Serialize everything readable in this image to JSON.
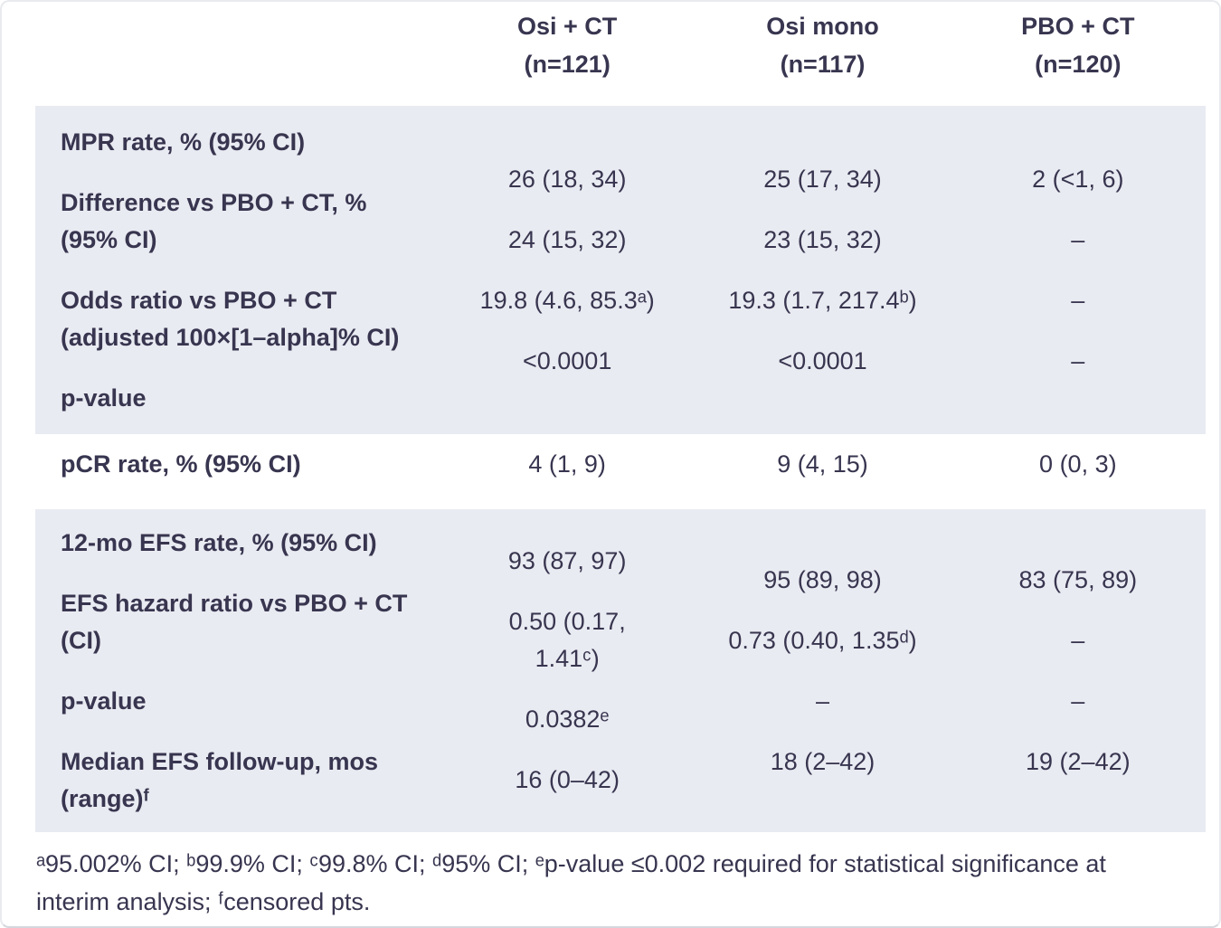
{
  "header": {
    "columns": [
      {
        "treatment": "Osi + CT",
        "n": "(n=121)"
      },
      {
        "treatment": "Osi mono",
        "n": "(n=117)"
      },
      {
        "treatment": "PBO + CT",
        "n": "(n=120)"
      }
    ]
  },
  "display": {
    "section1": {
      "labels": [
        "MPR rate, % (95% CI)",
        "Difference vs PBO + CT, %\n(95% CI)",
        "Odds ratio vs PBO + CT\n(adjusted 100×[1–alpha]% CI)",
        "p-value"
      ],
      "osi_ct": [
        "26 (18, 34)",
        "24 (15, 32)",
        "19.8 (4.6, 85.3ᵃ)",
        "<0.0001"
      ],
      "osi_mono": [
        "25 (17, 34)",
        "23 (15, 32)",
        "19.3 (1.7, 217.4ᵇ)",
        "<0.0001"
      ],
      "pbo_ct": [
        "2 (<1, 6)",
        "–",
        "–",
        "–"
      ]
    },
    "pcr_row": {
      "label": "pCR rate, % (95% CI)",
      "osi_ct": "4 (1, 9)",
      "osi_mono": "9 (4, 15)",
      "pbo_ct": "0 (0, 3)"
    },
    "section2": {
      "labels": [
        "12-mo EFS rate, % (95% CI)",
        "EFS hazard ratio vs PBO + CT\n(CI)",
        "p-value",
        "Median EFS follow-up, mos\n(range)ᶠ"
      ],
      "osi_ct": [
        "93 (87, 97)",
        "0.50 (0.17,\n1.41ᶜ)",
        "0.0382ᵉ",
        "16 (0–42)"
      ],
      "osi_mono": [
        "95 (89, 98)",
        "0.73 (0.40, 1.35ᵈ)",
        "–",
        "18 (2–42)"
      ],
      "pbo_ct": [
        "83 (75, 89)",
        "–",
        "–",
        "19 (2–42)"
      ]
    },
    "footnote": "ᵃ95.002% CI; ᵇ99.9% CI; ᶜ99.8% CI; ᵈ95% CI; ᵉp-value ≤0.002 required for statistical significance at\ninterim analysis; ᶠcensored pts."
  },
  "chart_data": {
    "type": "table",
    "columns": [
      "",
      "Osi + CT (n=121)",
      "Osi mono (n=117)",
      "PBO + CT (n=120)"
    ],
    "rows": [
      [
        "MPR rate, % (95% CI)",
        "26 (18, 34)",
        "25 (17, 34)",
        "2 (<1, 6)"
      ],
      [
        "Difference vs PBO + CT, % (95% CI)",
        "24 (15, 32)",
        "23 (15, 32)",
        "–"
      ],
      [
        "Odds ratio vs PBO + CT (adjusted 100×[1–alpha]% CI)",
        "19.8 (4.6, 85.3ᵃ)",
        "19.3 (1.7, 217.4ᵇ)",
        "–"
      ],
      [
        "p-value",
        "<0.0001",
        "<0.0001",
        "–"
      ],
      [
        "pCR rate, % (95% CI)",
        "4 (1, 9)",
        "9 (4, 15)",
        "0 (0, 3)"
      ],
      [
        "12-mo EFS rate, % (95% CI)",
        "93 (87, 97)",
        "95 (89, 98)",
        "83 (75, 89)"
      ],
      [
        "EFS hazard ratio vs PBO + CT (CI)",
        "0.50 (0.17, 1.41ᶜ)",
        "0.73 (0.40, 1.35ᵈ)",
        "–"
      ],
      [
        "p-value",
        "0.0382ᵉ",
        "–",
        "–"
      ],
      [
        "Median EFS follow-up, mos (range)ᶠ",
        "16 (0–42)",
        "18 (2–42)",
        "19 (2–42)"
      ]
    ],
    "footnote": "ᵃ95.002% CI; ᵇ99.9% CI; ᶜ99.8% CI; ᵈ95% CI; ᵉp-value ≤0.002 required for statistical significance at interim analysis; ᶠcensored pts.",
    "layout_hints": {
      "shaded_band_color": "#e9ebf2",
      "text_color": "#37354f",
      "shaded_row_groups": [
        [
          0,
          1,
          2,
          3
        ],
        [
          5,
          6,
          7,
          8
        ]
      ]
    }
  }
}
